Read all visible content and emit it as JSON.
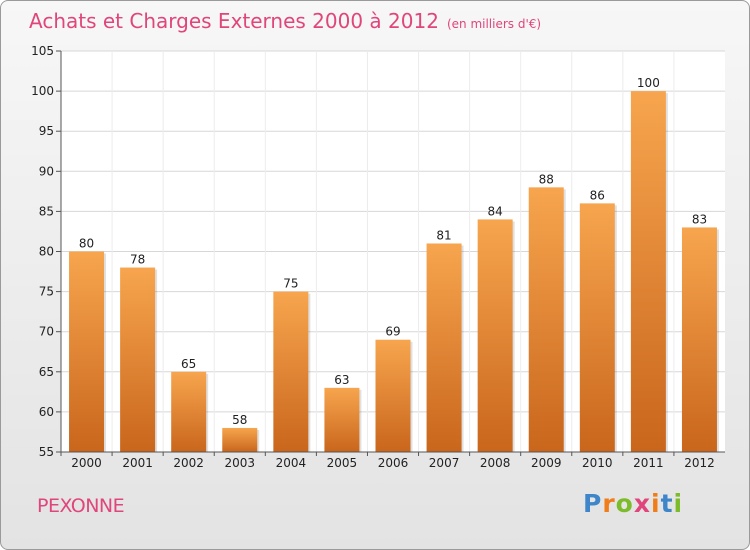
{
  "header": {
    "title": "Achats et Charges Externes 2000 à 2012",
    "unit": "(en milliers d'€)"
  },
  "footer": {
    "commune": "PEXONNE",
    "logo": "Proxiti"
  },
  "colors": {
    "title": "#e0457b",
    "bar_top": "#f7a54e",
    "bar_bottom": "#c9661c",
    "grid": "#d7d7d7",
    "logo": [
      "#3e86c9",
      "#f07c1a",
      "#7cbc2b",
      "#e0457b",
      "#f07c1a",
      "#3e86c9",
      "#7cbc2b"
    ]
  },
  "chart_data": {
    "type": "bar",
    "title": "Achats et Charges Externes 2000 à 2012",
    "subtitle": "(en milliers d'€)",
    "categories": [
      "2000",
      "2001",
      "2002",
      "2003",
      "2004",
      "2005",
      "2006",
      "2007",
      "2008",
      "2009",
      "2010",
      "2011",
      "2012"
    ],
    "values": [
      80,
      78,
      65,
      58,
      75,
      63,
      69,
      81,
      84,
      88,
      86,
      100,
      83
    ],
    "ylim": [
      55,
      105
    ],
    "yticks": [
      55,
      60,
      65,
      70,
      75,
      80,
      85,
      90,
      95,
      100,
      105
    ],
    "grid": true,
    "xlabel": "",
    "ylabel": ""
  }
}
